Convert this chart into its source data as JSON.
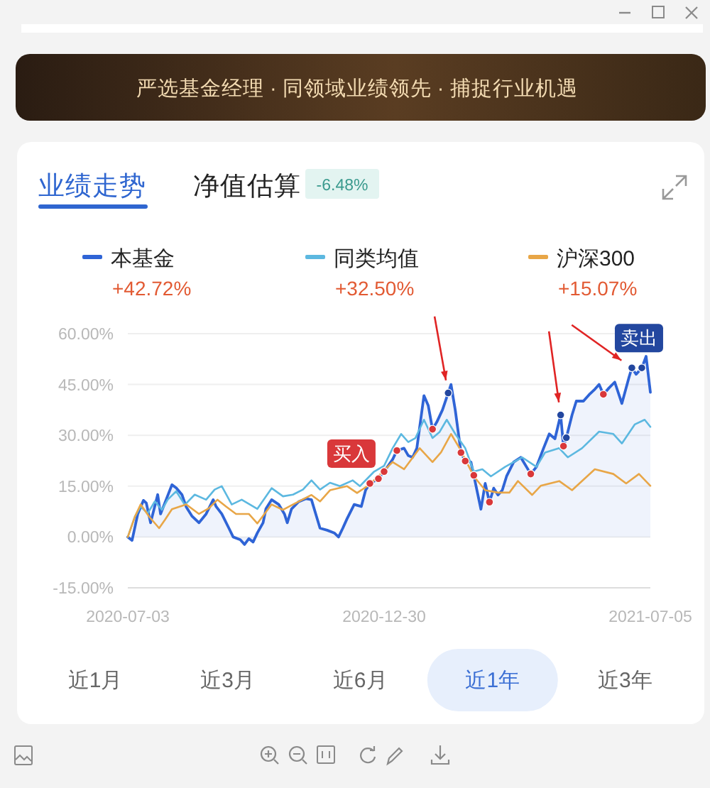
{
  "chart_data": {
    "type": "line",
    "title": "业绩走势",
    "xlim": [
      "2020-07-03",
      "2021-07-05"
    ],
    "xticks": [
      "2020-07-03",
      "2020-12-30",
      "2021-07-05"
    ],
    "ylim": [
      -15,
      60
    ],
    "yticks": [
      {
        "value": -15,
        "label": "-15.00%"
      },
      {
        "value": 0,
        "label": "0.00%"
      },
      {
        "value": 15,
        "label": "15.00%"
      },
      {
        "value": 30,
        "label": "30.00%"
      },
      {
        "value": 45,
        "label": "45.00%"
      },
      {
        "value": 60,
        "label": "60.00%"
      }
    ],
    "grid": "y",
    "legend": "top",
    "series": [
      {
        "name": "本基金",
        "type": "area",
        "color": "#2f64d6",
        "x": [
          "2020-07-03",
          "2020-07-06",
          "2020-07-10",
          "2020-07-14",
          "2020-07-16",
          "2020-07-19",
          "2020-07-24",
          "2020-07-26",
          "2020-07-29",
          "2020-08-03",
          "2020-08-06",
          "2020-08-10",
          "2020-08-13",
          "2020-08-17",
          "2020-08-22",
          "2020-08-27",
          "2020-09-01",
          "2020-09-03",
          "2020-09-07",
          "2020-09-12",
          "2020-09-15",
          "2020-09-20",
          "2020-09-23",
          "2020-09-26",
          "2020-09-29",
          "2020-10-02",
          "2020-10-06",
          "2020-10-08",
          "2020-10-12",
          "2020-10-17",
          "2020-10-21",
          "2020-10-23",
          "2020-10-26",
          "2020-10-31",
          "2020-11-05",
          "2020-11-09",
          "2020-11-12",
          "2020-11-15",
          "2020-11-20",
          "2020-11-25",
          "2020-11-28",
          "2020-12-01",
          "2020-12-04",
          "2020-12-09",
          "2020-12-14",
          "2020-12-17",
          "2020-12-20",
          "2020-12-26",
          "2020-12-30",
          "2021-01-05",
          "2021-01-08",
          "2021-01-13",
          "2021-01-16",
          "2021-01-19",
          "2021-01-22",
          "2021-01-27",
          "2021-01-30",
          "2021-02-02",
          "2021-02-05",
          "2021-02-09",
          "2021-02-13",
          "2021-02-15",
          "2021-02-18",
          "2021-02-22",
          "2021-02-25",
          "2021-03-01",
          "2021-03-03",
          "2021-03-08",
          "2021-03-11",
          "2021-03-14",
          "2021-03-17",
          "2021-03-20",
          "2021-03-23",
          "2021-03-26",
          "2021-03-31",
          "2021-04-05",
          "2021-04-08",
          "2021-04-12",
          "2021-04-16",
          "2021-04-21",
          "2021-04-25",
          "2021-04-29",
          "2021-05-03",
          "2021-05-05",
          "2021-05-07",
          "2021-05-11",
          "2021-05-14",
          "2021-05-19",
          "2021-05-23",
          "2021-05-27",
          "2021-05-30",
          "2021-06-02",
          "2021-06-06",
          "2021-06-10",
          "2021-06-15",
          "2021-06-20",
          "2021-06-22",
          "2021-06-25",
          "2021-06-29",
          "2021-07-02",
          "2021-07-05"
        ],
        "values": [
          0,
          -1,
          6.8,
          10.8,
          10,
          4.2,
          12.5,
          6.8,
          10,
          15.4,
          14.5,
          12.5,
          8.9,
          6.2,
          4.2,
          6.8,
          11,
          9,
          6.8,
          2.6,
          0,
          -0.8,
          -2.2,
          -0.5,
          -1.5,
          1.2,
          4.2,
          8.3,
          11,
          9.6,
          6.8,
          4.2,
          8.3,
          10.4,
          11.3,
          11,
          6.8,
          2.6,
          2,
          1.2,
          0,
          2.6,
          5.4,
          9.6,
          9,
          13.8,
          15.8,
          17.2,
          19.3,
          22.9,
          25.5,
          26.2,
          24,
          23.5,
          26.2,
          41.7,
          38.8,
          31.8,
          33.9,
          37.5,
          42.5,
          45,
          37.4,
          24.9,
          22.4,
          22.1,
          18.2,
          8.2,
          15.8,
          10.3,
          14.4,
          12.4,
          13.8,
          17.9,
          22.1,
          23.5,
          21.4,
          18.6,
          20.7,
          26.2,
          30.4,
          29,
          36,
          26.8,
          29.3,
          36,
          40.1,
          40.1,
          42,
          43.6,
          45,
          42.1,
          44,
          45.7,
          39.4,
          47.1,
          49.9,
          48,
          49.9,
          53.3,
          42.7
        ]
      },
      {
        "name": "同类均值",
        "color": "#5cb8e0",
        "x": [
          "2020-07-03",
          "2020-07-08",
          "2020-07-12",
          "2020-07-17",
          "2020-07-22",
          "2020-07-27",
          "2020-07-31",
          "2020-08-06",
          "2020-08-12",
          "2020-08-19",
          "2020-08-27",
          "2020-09-02",
          "2020-09-07",
          "2020-09-14",
          "2020-09-21",
          "2020-10-02",
          "2020-10-12",
          "2020-10-20",
          "2020-10-27",
          "2020-11-03",
          "2020-11-09",
          "2020-11-15",
          "2020-11-22",
          "2020-11-29",
          "2020-12-08",
          "2020-12-13",
          "2020-12-23",
          "2020-12-30",
          "2021-01-05",
          "2021-01-11",
          "2021-01-16",
          "2021-01-21",
          "2021-01-27",
          "2021-02-02",
          "2021-02-07",
          "2021-02-12",
          "2021-02-18",
          "2021-02-25",
          "2021-03-03",
          "2021-03-09",
          "2021-03-15",
          "2021-03-25",
          "2021-04-06",
          "2021-04-16",
          "2021-04-22",
          "2021-05-02",
          "2021-05-08",
          "2021-05-18",
          "2021-05-30",
          "2021-06-09",
          "2021-06-15",
          "2021-06-24",
          "2021-07-01",
          "2021-07-05"
        ],
        "values": [
          0,
          6,
          9,
          7,
          10.5,
          8,
          11,
          13.5,
          9.5,
          12.5,
          11,
          14,
          15,
          9.6,
          11,
          8.3,
          14.4,
          12,
          12.5,
          14,
          16.7,
          14,
          16,
          15,
          16.7,
          15,
          19.3,
          21,
          26.2,
          30.4,
          28,
          29.2,
          34.6,
          29.2,
          31,
          34.6,
          30.4,
          26.2,
          19.3,
          20,
          17.9,
          20.7,
          23.5,
          20.7,
          24.9,
          26.2,
          23.5,
          26.2,
          31.1,
          30.4,
          27.6,
          33.2,
          34.6,
          32.5
        ]
      },
      {
        "name": "沪深300",
        "color": "#e8a647",
        "x": [
          "2020-07-03",
          "2020-07-08",
          "2020-07-12",
          "2020-07-18",
          "2020-07-25",
          "2020-07-29",
          "2020-08-03",
          "2020-08-13",
          "2020-08-22",
          "2020-08-29",
          "2020-09-04",
          "2020-09-10",
          "2020-09-17",
          "2020-09-26",
          "2020-10-02",
          "2020-10-12",
          "2020-10-20",
          "2020-10-27",
          "2020-11-09",
          "2020-11-15",
          "2020-11-22",
          "2020-12-04",
          "2020-12-11",
          "2020-12-20",
          "2021-01-05",
          "2021-01-13",
          "2021-01-24",
          "2021-02-02",
          "2021-02-08",
          "2021-02-15",
          "2021-02-21",
          "2021-03-03",
          "2021-03-11",
          "2021-03-20",
          "2021-03-28",
          "2021-04-03",
          "2021-04-13",
          "2021-04-19",
          "2021-05-02",
          "2021-05-11",
          "2021-05-27",
          "2021-06-09",
          "2021-06-18",
          "2021-06-27",
          "2021-07-05"
        ],
        "values": [
          0,
          6,
          9.6,
          6,
          2.6,
          5,
          8.2,
          9.6,
          6.8,
          8.5,
          11,
          9,
          6.8,
          6.8,
          4,
          9.6,
          8,
          9.6,
          12.4,
          10.5,
          13.8,
          15,
          13,
          15.5,
          22.1,
          20,
          26.2,
          22.1,
          25,
          30.4,
          26.2,
          17.9,
          13.8,
          13.1,
          13.1,
          16.5,
          12.4,
          15.1,
          16.5,
          13.8,
          20,
          18.6,
          15.8,
          18.6,
          15.1
        ]
      },
      {
        "type": "scatter",
        "color": "#d9383a",
        "x": [
          "2020-12-20",
          "2020-12-26",
          "2020-12-30",
          "2021-01-08",
          "2021-02-02",
          "2021-02-22",
          "2021-02-25",
          "2021-03-03",
          "2021-03-14",
          "2021-04-12",
          "2021-05-05",
          "2021-06-02"
        ],
        "values": [
          15.8,
          17.2,
          19.3,
          25.5,
          31.8,
          24.9,
          22.4,
          18.2,
          10.3,
          18.6,
          26.8,
          42.1
        ]
      },
      {
        "type": "scatter",
        "color": "#23479f",
        "x": [
          "2021-02-13",
          "2021-05-03",
          "2021-05-07",
          "2021-06-22",
          "2021-06-29"
        ],
        "values": [
          42.5,
          36,
          29.3,
          49.9,
          49.9
        ]
      }
    ],
    "annotations": [
      "严选基金经理 · 同领域业绩领先 · 捕捉行业机遇",
      "净值估算",
      "-6.48%",
      "+42.72%",
      "+32.50%",
      "+15.07%",
      "近1月",
      "近3月",
      "近6月",
      "近1年",
      "近3年",
      {
        "text": "买入",
        "x": "2020-12-20",
        "y": 15.8
      },
      {
        "text": "卖出",
        "x": "2021-06-29",
        "y": 49.9
      }
    ]
  }
}
